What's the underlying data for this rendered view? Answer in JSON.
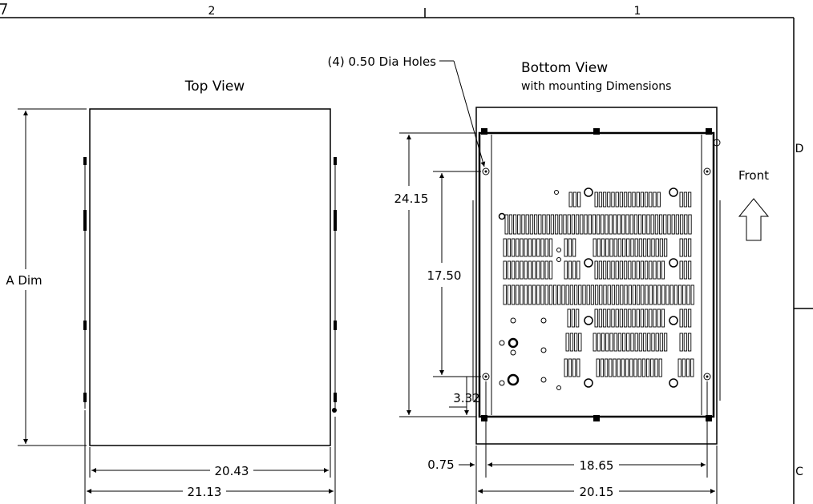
{
  "border": {
    "zone_top_left": "2",
    "zone_top_right": "1",
    "zone_right_upper": "D",
    "zone_right_lower": "C"
  },
  "top_view": {
    "title": "Top View",
    "height_label": "A Dim",
    "inner_width": "20.43",
    "outer_width": "21.13"
  },
  "bottom_view": {
    "title": "Bottom View",
    "subtitle": "with mounting Dimensions",
    "holes_note": "(4) 0.50 Dia Holes",
    "front_label": "Front",
    "dim_overall_height": "24.15",
    "dim_hole_spacing_v": "17.50",
    "dim_hole_offset_v": "3.32",
    "dim_hole_offset_h": "0.75",
    "dim_hole_spacing_h": "18.65",
    "dim_overall_width": "20.15"
  }
}
